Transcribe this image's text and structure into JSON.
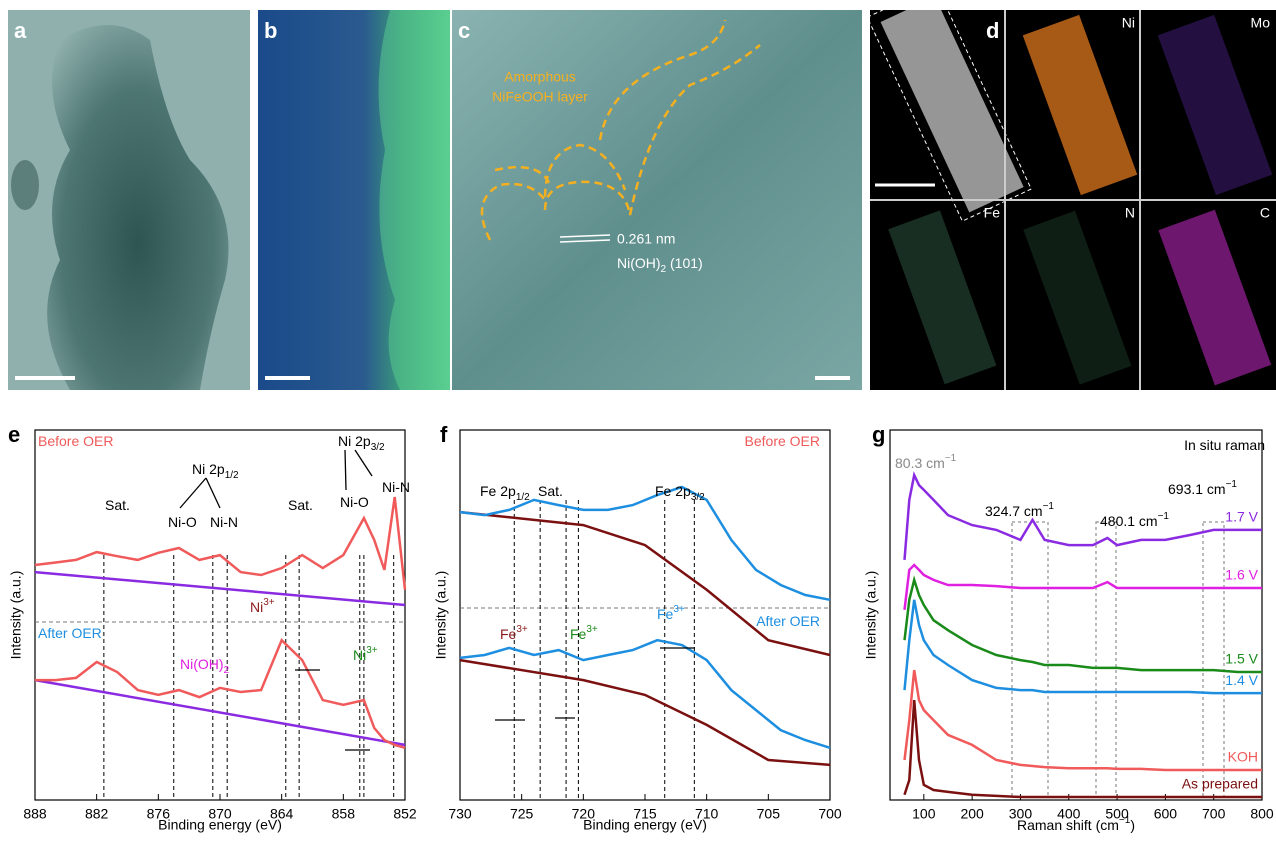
{
  "image_panels": {
    "labels": [
      "a",
      "b",
      "c",
      "d"
    ],
    "annotation_1": "Amorphous",
    "annotation_2": "NiFeOOH layer",
    "spacing": "0.261 nm",
    "plane": {
      "text": "Ni(OH)",
      "sub": "2",
      "tail": " (101)"
    },
    "maps": [
      "Ni",
      "Mo",
      "Fe",
      "N",
      "C"
    ]
  },
  "chart_data": [
    {
      "type": "line",
      "panel_label": "e",
      "xlabel": "Binding energy (eV)",
      "ylabel": "Intensity (a.u.)",
      "xlim": [
        888,
        852
      ],
      "xticks": [
        888,
        882,
        876,
        870,
        864,
        858,
        852
      ],
      "ylim": [
        0,
        100
      ],
      "x": [
        888,
        886,
        884,
        882,
        880,
        878,
        876,
        874,
        872,
        870,
        868,
        866,
        864,
        862,
        860,
        858,
        856,
        855,
        854,
        853,
        852
      ],
      "series": [
        {
          "color": "#8a2be2",
          "x": [
            888,
            852
          ],
          "values": [
            61.6,
            52.7
          ]
        },
        {
          "color": "#8a2be2",
          "x": [
            888,
            852
          ],
          "values": [
            32.4,
            14.9
          ]
        },
        {
          "color": "#f05a5a",
          "values": [
            63.5,
            64.2,
            64.9,
            67.0,
            65.9,
            64.9,
            66.8,
            68.1,
            64.9,
            66.2,
            61.6,
            60.8,
            62.7,
            66.2,
            62.7,
            66.2,
            76.2,
            70.3,
            62.2,
            81.9,
            56.8
          ]
        },
        {
          "color": "#f05a5a",
          "values": [
            32.4,
            32.4,
            33.0,
            37.3,
            34.6,
            29.7,
            28.4,
            29.7,
            27.8,
            30.3,
            29.2,
            29.7,
            43.2,
            37.8,
            27.0,
            25.7,
            27.0,
            19.5,
            16.2,
            14.9,
            14.1
          ]
        }
      ],
      "reference_lines": [
        881.3,
        874.5,
        870.7,
        869.3,
        863.6,
        862.3,
        856.4,
        856.0,
        853.1
      ],
      "annotations": [
        {
          "text": "Before OER",
          "color": "#f05a5a"
        },
        {
          "text": "After OER",
          "color": "#1e8fe0"
        },
        {
          "text": "Ni 2p",
          "sub": "1/2",
          "color": "#000"
        },
        {
          "text": "Ni-O",
          "color": "#000"
        },
        {
          "text": "Ni-N",
          "color": "#000"
        },
        {
          "text": "Sat.",
          "color": "#000"
        },
        {
          "text": "Sat.",
          "color": "#000"
        },
        {
          "text": "Ni 2p",
          "sub": "3/2",
          "color": "#000"
        },
        {
          "text": "Ni-O",
          "color": "#000"
        },
        {
          "text": "Ni-N",
          "color": "#000"
        },
        {
          "text": "Ni",
          "sup": "3+",
          "color": "#8b1a1a"
        },
        {
          "text": "Ni(OH)",
          "sub": "2",
          "color": "#e020e0"
        },
        {
          "text": "Ni",
          "sup": "3+",
          "color": "#1a8a1a"
        }
      ]
    },
    {
      "type": "line",
      "panel_label": "f",
      "xlabel": "Binding energy (eV)",
      "ylabel": "Intensity (a.u.)",
      "xlim": [
        730,
        700
      ],
      "xticks": [
        730,
        725,
        720,
        715,
        710,
        705,
        700
      ],
      "ylim": [
        0,
        100
      ],
      "x": [
        730,
        728,
        726,
        724,
        722,
        720,
        718,
        716,
        714,
        712,
        710,
        708,
        706,
        704,
        702,
        700
      ],
      "series": [
        {
          "color": "#7b1010",
          "x": [
            730,
            720,
            715,
            710,
            705,
            700
          ],
          "values": [
            77.8,
            74.3,
            68.9,
            56.8,
            43.2,
            39.2
          ]
        },
        {
          "color": "#7b1010",
          "x": [
            730,
            720,
            715,
            710,
            705,
            700
          ],
          "values": [
            37.8,
            32.4,
            28.4,
            20.3,
            10.8,
            9.5
          ]
        },
        {
          "color": "#1e8fe0",
          "values": [
            77.8,
            77.0,
            78.4,
            81.1,
            79.7,
            78.4,
            78.4,
            79.7,
            82.4,
            84.6,
            81.1,
            70.3,
            62.2,
            58.1,
            55.4,
            54.1
          ]
        },
        {
          "color": "#1e8fe0",
          "values": [
            38.4,
            39.2,
            41.1,
            39.2,
            40.5,
            37.8,
            39.2,
            40.5,
            43.2,
            41.9,
            37.8,
            29.7,
            24.3,
            18.9,
            16.2,
            14.1
          ]
        }
      ],
      "reference_lines": [
        725.6,
        723.5,
        721.4,
        720.4,
        713.4,
        711.0
      ],
      "annotations": [
        {
          "text": "Before OER",
          "color": "#f05a5a"
        },
        {
          "text": "After OER",
          "color": "#1e8fe0"
        },
        {
          "text": "Fe 2p",
          "sub": "1/2",
          "color": "#000"
        },
        {
          "text": "Sat.",
          "color": "#000"
        },
        {
          "text": "Fe 2p",
          "sub": "3/2",
          "color": "#000"
        },
        {
          "text": "Fe",
          "sup": "3+",
          "color": "#8b1a1a"
        },
        {
          "text": "Fe",
          "sup": "3+",
          "color": "#1a8a1a"
        },
        {
          "text": "Fe",
          "sup": "3+",
          "color": "#1e8fe0"
        }
      ]
    },
    {
      "type": "line",
      "panel_label": "g",
      "xlabel": {
        "text": "Raman shift (cm",
        "sup": "−1",
        "tail": ")"
      },
      "ylabel": "Intensity (a.u.)",
      "xlim": [
        30,
        800
      ],
      "xticks": [
        100,
        200,
        300,
        400,
        500,
        600,
        700,
        800
      ],
      "ylim": [
        0,
        100
      ],
      "x": [
        60,
        70,
        80,
        90,
        100,
        120,
        150,
        200,
        250,
        300,
        325,
        350,
        400,
        450,
        480,
        500,
        550,
        600,
        650,
        700,
        750,
        800
      ],
      "series": [
        {
          "name": "As prepared",
          "color": "#7b1010",
          "values": [
            1.4,
            5.4,
            27.0,
            10.8,
            4.1,
            2.7,
            2.2,
            1.4,
            1.1,
            0.8,
            0.8,
            0.8,
            0.8,
            0.8,
            0.8,
            0.8,
            0.8,
            0.8,
            0.8,
            0.8,
            0.8,
            0.8
          ]
        },
        {
          "name": "KOH",
          "color": "#f05a5a",
          "values": [
            10.8,
            21.6,
            35.1,
            27.0,
            24.3,
            21.6,
            17.6,
            14.9,
            10.8,
            9.5,
            9.2,
            8.9,
            8.6,
            8.6,
            8.6,
            8.4,
            8.4,
            8.1,
            8.1,
            8.1,
            8.1,
            8.1
          ]
        },
        {
          "name": "1.4 V",
          "color": "#1e8fe0",
          "values": [
            29.7,
            43.2,
            54.1,
            47.3,
            43.2,
            39.2,
            36.5,
            32.4,
            30.3,
            29.7,
            29.7,
            29.2,
            29.2,
            29.2,
            29.2,
            29.2,
            29.2,
            29.2,
            29.2,
            28.9,
            28.9,
            28.9
          ]
        },
        {
          "name": "1.5 V",
          "color": "#1a8a1a",
          "values": [
            43.2,
            54.1,
            59.5,
            55.4,
            52.7,
            48.6,
            45.9,
            41.9,
            39.2,
            37.8,
            37.3,
            36.5,
            36.5,
            35.7,
            35.7,
            35.7,
            35.1,
            35.1,
            35.1,
            35.1,
            34.6,
            34.6
          ]
        },
        {
          "name": "1.6 V",
          "color": "#e020e0",
          "values": [
            51.4,
            62.2,
            63.5,
            62.2,
            60.8,
            59.5,
            58.1,
            58.1,
            57.8,
            57.3,
            57.3,
            57.3,
            57.3,
            57.3,
            58.9,
            57.3,
            57.3,
            57.3,
            57.3,
            57.3,
            57.3,
            57.3
          ]
        },
        {
          "name": "1.7 V",
          "color": "#8a2be2",
          "values": [
            64.9,
            81.1,
            87.8,
            85.1,
            83.8,
            81.1,
            77.0,
            74.3,
            73.0,
            70.3,
            75.7,
            70.3,
            68.9,
            68.9,
            70.8,
            68.9,
            70.3,
            70.3,
            71.6,
            73.0,
            73.0,
            73.0
          ]
        }
      ],
      "annotations": [
        {
          "text": "In situ raman",
          "color": "#000"
        },
        {
          "text": "80.3 cm",
          "sup": "−1",
          "color": "#888"
        },
        {
          "text": "324.7 cm",
          "sup": "−1",
          "color": "#000"
        },
        {
          "text": "480.1 cm",
          "sup": "−1",
          "color": "#000"
        },
        {
          "text": "693.1 cm",
          "sup": "−1",
          "color": "#000"
        }
      ]
    }
  ]
}
